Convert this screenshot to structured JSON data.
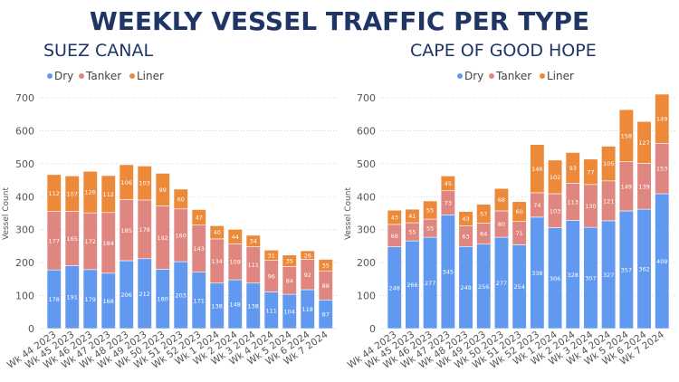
{
  "title": "WEEKLY VESSEL TRAFFIC PER TYPE",
  "colors": {
    "Dry": "#6299f0",
    "Tanker": "#e08680",
    "Liner": "#ec8a3a",
    "title": "#1f3566"
  },
  "chart_data": [
    {
      "type": "bar",
      "stacked": true,
      "title": "SUEZ CANAL",
      "ylabel": "Vessel Count",
      "xlabel": "",
      "ylim": [
        0,
        700
      ],
      "yticks": [
        0,
        100,
        200,
        300,
        400,
        500,
        600,
        700
      ],
      "legend": "top-left",
      "categories": [
        "Wk 44 2023",
        "Wk 45 2023",
        "Wk 46 2023",
        "Wk 47 2023",
        "Wk 48 2023",
        "Wk 49 2023",
        "Wk 50 2023",
        "Wk 51 2023",
        "Wk 52 2023",
        "Wk 1 2024",
        "Wk 2 2024",
        "Wk 3 2024",
        "Wk 4 2024",
        "Wk 5 2024",
        "Wk 6 2024",
        "Wk 7 2024"
      ],
      "series": [
        {
          "name": "Dry",
          "values": [
            178,
            191,
            179,
            168,
            206,
            212,
            180,
            203,
            171,
            138,
            148,
            138,
            111,
            104,
            118,
            87
          ]
        },
        {
          "name": "Tanker",
          "values": [
            177,
            165,
            172,
            184,
            185,
            178,
            192,
            160,
            143,
            134,
            109,
            111,
            96,
            84,
            92,
            88
          ]
        },
        {
          "name": "Liner",
          "values": [
            112,
            107,
            126,
            112,
            106,
            103,
            99,
            60,
            47,
            40,
            44,
            34,
            31,
            35,
            26,
            35
          ]
        }
      ]
    },
    {
      "type": "bar",
      "stacked": true,
      "title": "CAPE OF GOOD HOPE",
      "ylabel": "Vessel Count",
      "xlabel": "",
      "ylim": [
        0,
        700
      ],
      "yticks": [
        0,
        100,
        200,
        300,
        400,
        500,
        600,
        700
      ],
      "legend": "top-left",
      "categories": [
        "Wk 44 2023",
        "Wk 45 2023",
        "Wk 46 2023",
        "Wk 47 2023",
        "Wk 48 2023",
        "Wk 49 2023",
        "Wk 50 2023",
        "Wk 51 2023",
        "Wk 52 2023",
        "Wk 1 2024",
        "Wk 2 2024",
        "Wk 3 2024",
        "Wk 4 2024",
        "Wk 5 2024",
        "Wk 6 2024",
        "Wk 7 2024"
      ],
      "series": [
        {
          "name": "Dry",
          "values": [
            248,
            266,
            277,
            345,
            249,
            256,
            277,
            254,
            338,
            306,
            328,
            307,
            327,
            357,
            362,
            409
          ]
        },
        {
          "name": "Tanker",
          "values": [
            68,
            55,
            55,
            73,
            63,
            64,
            80,
            71,
            74,
            103,
            113,
            130,
            121,
            149,
            139,
            153
          ]
        },
        {
          "name": "Liner",
          "values": [
            43,
            41,
            55,
            45,
            43,
            57,
            68,
            60,
            146,
            102,
            93,
            77,
            105,
            158,
            127,
            149
          ]
        }
      ]
    }
  ]
}
